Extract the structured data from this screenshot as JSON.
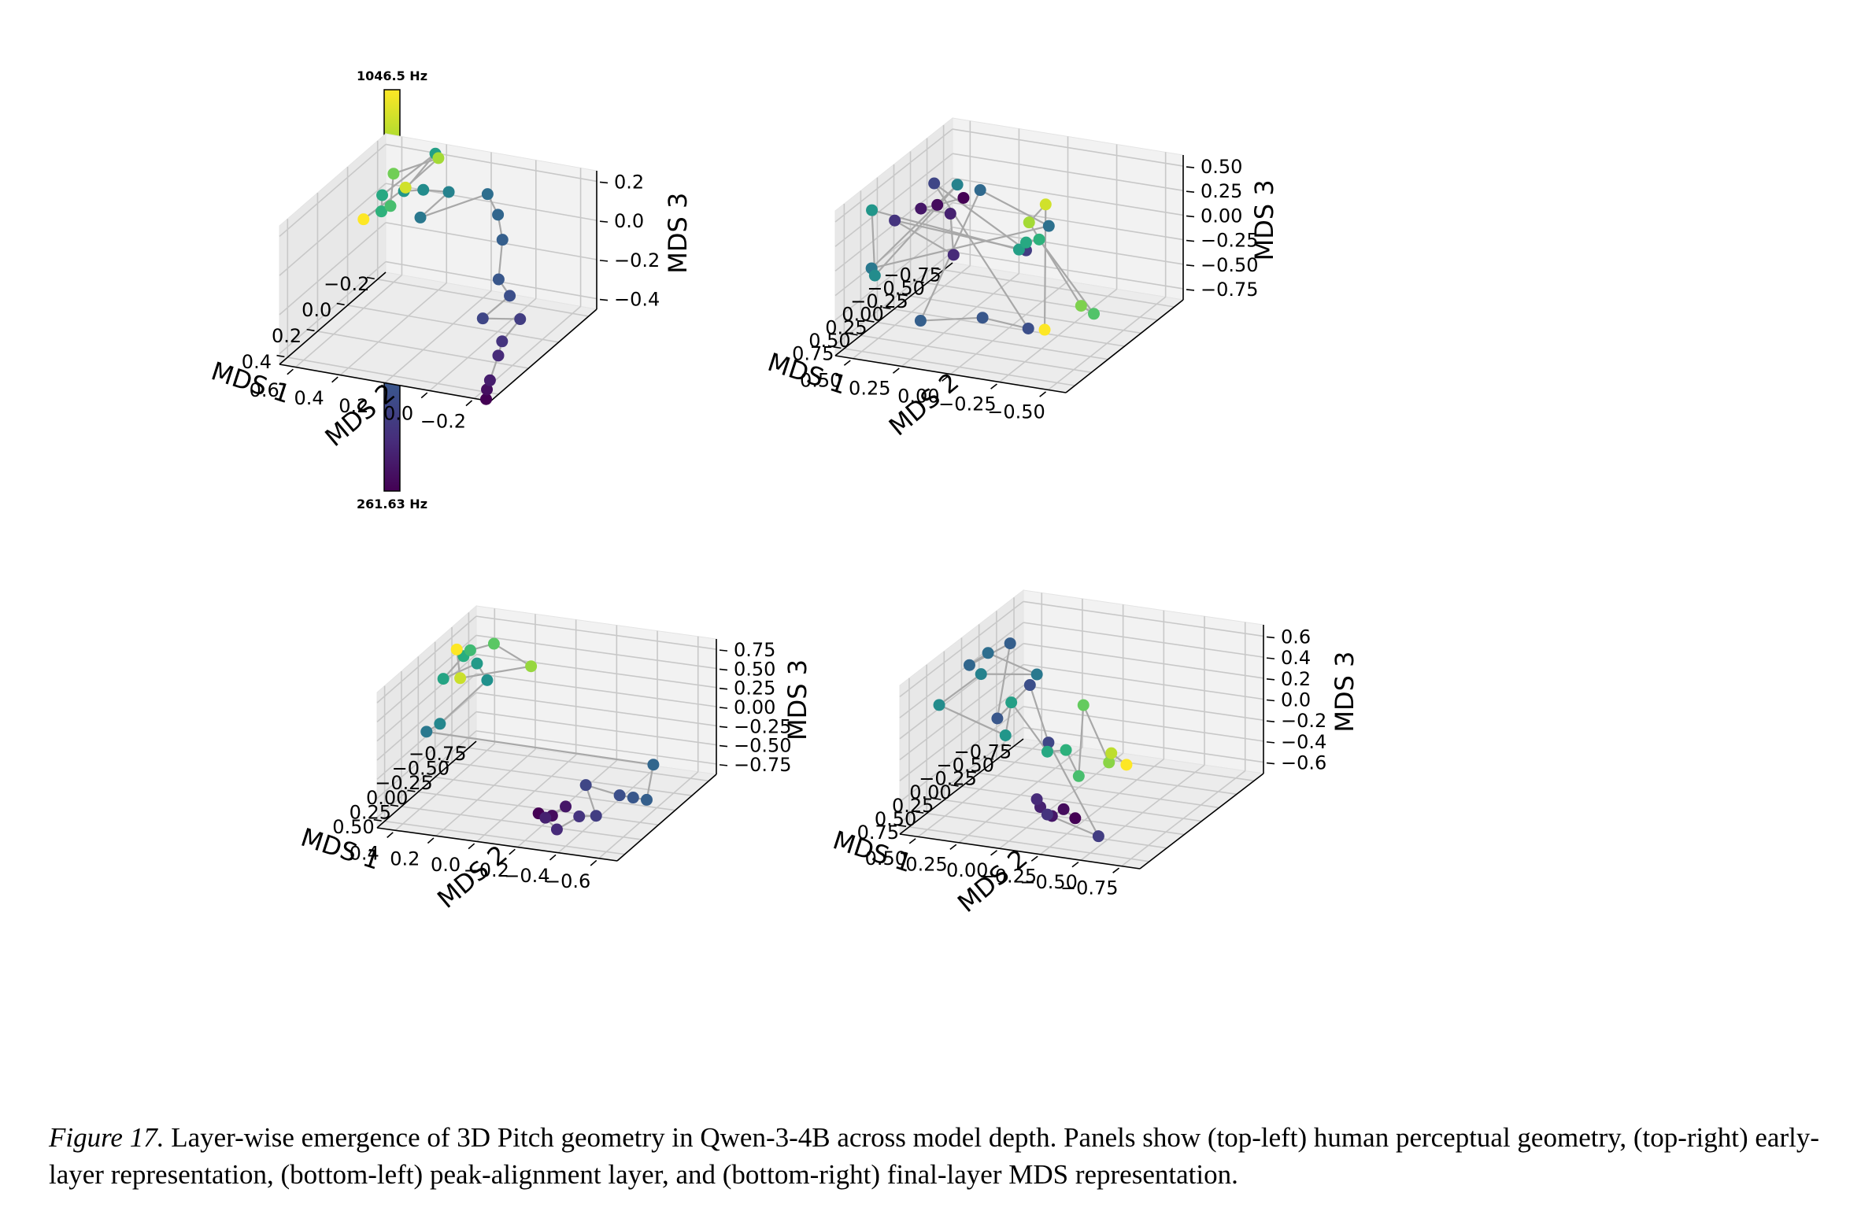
{
  "chart_data": {
    "type": "scatter",
    "colorbar": {
      "max_label": "1046.5 Hz",
      "min_label": "261.63 Hz",
      "colormap": "viridis"
    },
    "panels": [
      {
        "position": "top-left",
        "xlabel": "MDS 1",
        "ylabel": "MDS 2",
        "zlabel": "MDS 3",
        "xticks": [
          "−0.2",
          "0.0",
          "0.2",
          "0.4"
        ],
        "yticks": [
          "−0.2",
          "0.0",
          "0.2",
          "0.4",
          "0.6"
        ],
        "zticks": [
          "0.2",
          "0.0",
          "−0.2",
          "−0.4"
        ],
        "points": [
          {
            "x": 0.45,
            "y": -0.25,
            "z": -0.45,
            "c": 0.0
          },
          {
            "x": 0.4,
            "y": -0.22,
            "z": -0.44,
            "c": 0.04
          },
          {
            "x": 0.35,
            "y": -0.2,
            "z": -0.43,
            "c": 0.08
          },
          {
            "x": 0.22,
            "y": -0.15,
            "z": -0.4,
            "c": 0.12
          },
          {
            "x": 0.15,
            "y": -0.12,
            "z": -0.38,
            "c": 0.15
          },
          {
            "x": 0.0,
            "y": -0.1,
            "z": -0.37,
            "c": 0.18
          },
          {
            "x": 0.1,
            "y": 0.0,
            "z": -0.32,
            "c": 0.21
          },
          {
            "x": -0.05,
            "y": -0.02,
            "z": -0.3,
            "c": 0.24
          },
          {
            "x": -0.08,
            "y": 0.05,
            "z": -0.25,
            "c": 0.27
          },
          {
            "x": -0.15,
            "y": 0.08,
            "z": -0.1,
            "c": 0.3
          },
          {
            "x": -0.18,
            "y": 0.12,
            "z": 0.0,
            "c": 0.33
          },
          {
            "x": -0.2,
            "y": 0.18,
            "z": 0.08,
            "c": 0.36
          },
          {
            "x": -0.05,
            "y": 0.38,
            "z": 0.02,
            "c": 0.4
          },
          {
            "x": -0.12,
            "y": 0.3,
            "z": 0.12,
            "c": 0.44
          },
          {
            "x": 0.02,
            "y": 0.32,
            "z": 0.22,
            "c": 0.48
          },
          {
            "x": 0.0,
            "y": 0.42,
            "z": 0.18,
            "c": 0.52
          },
          {
            "x": -0.15,
            "y": 0.38,
            "z": 0.28,
            "c": 0.56
          },
          {
            "x": 0.1,
            "y": 0.45,
            "z": 0.22,
            "c": 0.6
          },
          {
            "x": 0.18,
            "y": 0.4,
            "z": 0.2,
            "c": 0.64
          },
          {
            "x": 0.06,
            "y": 0.44,
            "z": 0.14,
            "c": 0.7
          },
          {
            "x": -0.05,
            "y": 0.5,
            "z": 0.22,
            "c": 0.78
          },
          {
            "x": -0.2,
            "y": 0.4,
            "z": 0.22,
            "c": 0.86
          },
          {
            "x": -0.1,
            "y": 0.48,
            "z": 0.12,
            "c": 0.93
          },
          {
            "x": 0.15,
            "y": 0.5,
            "z": 0.12,
            "c": 1.0
          }
        ]
      },
      {
        "position": "top-right",
        "xlabel": "MDS 1",
        "ylabel": "MDS 2",
        "zlabel": "MDS 3",
        "xticks": [
          "−0.75",
          "−0.50",
          "−0.25",
          "0.00",
          "0.25",
          "0.50",
          "0.75"
        ],
        "yticks": [
          "−0.50",
          "−0.25",
          "0.00",
          "0.25",
          "0.50"
        ],
        "zticks": [
          "0.50",
          "0.25",
          "0.00",
          "−0.25",
          "−0.50",
          "−0.75"
        ],
        "points": [
          {
            "x": 0.1,
            "y": 0.2,
            "z": 0.45,
            "c": 0.0
          },
          {
            "x": 0.2,
            "y": 0.3,
            "z": 0.4,
            "c": 0.03
          },
          {
            "x": 0.3,
            "y": 0.35,
            "z": 0.4,
            "c": 0.06
          },
          {
            "x": 0.15,
            "y": 0.25,
            "z": 0.3,
            "c": 0.09
          },
          {
            "x": 0.25,
            "y": 0.2,
            "z": -0.05,
            "c": 0.12
          },
          {
            "x": 0.4,
            "y": 0.45,
            "z": 0.3,
            "c": 0.15
          },
          {
            "x": -0.55,
            "y": 0.1,
            "z": -0.4,
            "c": 0.18
          },
          {
            "x": 0.1,
            "y": 0.35,
            "z": 0.55,
            "c": 0.21
          },
          {
            "x": 0.45,
            "y": -0.25,
            "z": -0.55,
            "c": 0.24
          },
          {
            "x": 0.55,
            "y": -0.05,
            "z": -0.45,
            "c": 0.27
          },
          {
            "x": 0.6,
            "y": 0.25,
            "z": -0.55,
            "c": 0.3
          },
          {
            "x": -0.3,
            "y": 0.25,
            "z": 0.3,
            "c": 0.34
          },
          {
            "x": -0.45,
            "y": -0.05,
            "z": -0.05,
            "c": 0.37
          },
          {
            "x": 0.75,
            "y": 0.45,
            "z": 0.0,
            "c": 0.4
          },
          {
            "x": -0.25,
            "y": 0.35,
            "z": 0.35,
            "c": 0.44
          },
          {
            "x": 0.7,
            "y": 0.45,
            "z": -0.1,
            "c": 0.48
          },
          {
            "x": 0.45,
            "y": 0.55,
            "z": 0.4,
            "c": 0.52
          },
          {
            "x": 0.0,
            "y": -0.05,
            "z": -0.05,
            "c": 0.56
          },
          {
            "x": -0.55,
            "y": 0.1,
            "z": -0.32,
            "c": 0.6
          },
          {
            "x": -0.6,
            "y": 0.05,
            "z": -0.3,
            "c": 0.64
          },
          {
            "x": 0.05,
            "y": -0.45,
            "z": -0.55,
            "c": 0.72
          },
          {
            "x": -0.2,
            "y": -0.3,
            "z": -0.65,
            "c": 0.8
          },
          {
            "x": -0.3,
            "y": 0.0,
            "z": 0.05,
            "c": 0.86
          },
          {
            "x": -0.55,
            "y": 0.0,
            "z": 0.1,
            "c": 0.93
          },
          {
            "x": 0.35,
            "y": -0.3,
            "z": -0.6,
            "c": 1.0
          }
        ]
      },
      {
        "position": "bottom-left",
        "xlabel": "MDS 1",
        "ylabel": "MDS 2",
        "zlabel": "MDS 3",
        "xticks": [
          "−0.75",
          "−0.50",
          "−0.25",
          "0.00",
          "0.25",
          "0.50"
        ],
        "yticks": [
          "−0.6",
          "−0.4",
          "−0.2",
          "0.0",
          "0.2",
          "0.4"
        ],
        "zticks": [
          "0.75",
          "0.50",
          "0.25",
          "0.00",
          "−0.25",
          "−0.50",
          "−0.75"
        ],
        "points": [
          {
            "x": 0.45,
            "y": -0.25,
            "z": -0.55,
            "c": 0.0
          },
          {
            "x": 0.4,
            "y": -0.3,
            "z": -0.6,
            "c": 0.03
          },
          {
            "x": 0.35,
            "y": -0.35,
            "z": -0.5,
            "c": 0.06
          },
          {
            "x": 0.5,
            "y": -0.3,
            "z": -0.55,
            "c": 0.09
          },
          {
            "x": 0.48,
            "y": -0.35,
            "z": -0.7,
            "c": 0.12
          },
          {
            "x": 0.3,
            "y": -0.4,
            "z": -0.65,
            "c": 0.15
          },
          {
            "x": 0.2,
            "y": -0.45,
            "z": -0.7,
            "c": 0.18
          },
          {
            "x": 0.05,
            "y": -0.35,
            "z": -0.45,
            "c": 0.21
          },
          {
            "x": -0.15,
            "y": -0.45,
            "z": -0.7,
            "c": 0.24
          },
          {
            "x": -0.2,
            "y": -0.5,
            "z": -0.75,
            "c": 0.27
          },
          {
            "x": -0.25,
            "y": -0.55,
            "z": -0.8,
            "c": 0.3
          },
          {
            "x": -0.5,
            "y": -0.5,
            "z": -0.55,
            "c": 0.33
          },
          {
            "x": 0.15,
            "y": 0.4,
            "z": 0.05,
            "c": 0.4
          },
          {
            "x": -0.05,
            "y": 0.4,
            "z": 0.0,
            "c": 0.46
          },
          {
            "x": -0.45,
            "y": 0.3,
            "z": 0.3,
            "c": 0.5
          },
          {
            "x": -0.45,
            "y": 0.35,
            "z": 0.5,
            "c": 0.54
          },
          {
            "x": -0.1,
            "y": 0.4,
            "z": 0.55,
            "c": 0.58
          },
          {
            "x": -0.25,
            "y": 0.35,
            "z": 0.75,
            "c": 0.62
          },
          {
            "x": -0.35,
            "y": 0.35,
            "z": 0.75,
            "c": 0.68
          },
          {
            "x": -0.55,
            "y": 0.3,
            "z": 0.7,
            "c": 0.74
          },
          {
            "x": -0.8,
            "y": 0.2,
            "z": 0.25,
            "c": 0.84
          },
          {
            "x": -0.2,
            "y": 0.35,
            "z": 0.5,
            "c": 0.92
          },
          {
            "x": -0.3,
            "y": 0.4,
            "z": 0.78,
            "c": 1.0
          }
        ]
      },
      {
        "position": "bottom-right",
        "xlabel": "MDS 1",
        "ylabel": "MDS 2",
        "zlabel": "MDS 3",
        "xticks": [
          "−0.75",
          "−0.50",
          "−0.25",
          "0.00",
          "0.25",
          "0.50",
          "0.75"
        ],
        "yticks": [
          "−0.75",
          "−0.50",
          "−0.25",
          "0.00",
          "0.25",
          "0.50"
        ],
        "zticks": [
          "0.6",
          "0.4",
          "0.2",
          "0.0",
          "−0.2",
          "−0.4",
          "−0.6"
        ],
        "points": [
          {
            "x": 0.5,
            "y": -0.3,
            "z": -0.55,
            "c": 0.0
          },
          {
            "x": 0.55,
            "y": -0.25,
            "z": -0.45,
            "c": 0.03
          },
          {
            "x": 0.6,
            "y": -0.2,
            "z": -0.5,
            "c": 0.06
          },
          {
            "x": 0.65,
            "y": -0.15,
            "z": -0.4,
            "c": 0.09
          },
          {
            "x": 0.7,
            "y": -0.15,
            "z": -0.3,
            "c": 0.12
          },
          {
            "x": 0.62,
            "y": -0.18,
            "z": -0.48,
            "c": 0.15
          },
          {
            "x": 0.4,
            "y": -0.4,
            "z": -0.75,
            "c": 0.18
          },
          {
            "x": -0.05,
            "y": 0.1,
            "z": -0.2,
            "c": 0.21
          },
          {
            "x": -0.25,
            "y": 0.3,
            "z": 0.2,
            "c": 0.24
          },
          {
            "x": 0.1,
            "y": 0.35,
            "z": 0.05,
            "c": 0.27
          },
          {
            "x": -0.2,
            "y": 0.4,
            "z": 0.6,
            "c": 0.3
          },
          {
            "x": 0.15,
            "y": 0.5,
            "z": 0.55,
            "c": 0.33
          },
          {
            "x": 0.0,
            "y": 0.45,
            "z": 0.6,
            "c": 0.36
          },
          {
            "x": -0.35,
            "y": 0.3,
            "z": 0.25,
            "c": 0.4
          },
          {
            "x": 0.1,
            "y": 0.45,
            "z": 0.45,
            "c": 0.44
          },
          {
            "x": 0.35,
            "y": 0.6,
            "z": 0.25,
            "c": 0.48
          },
          {
            "x": 0.1,
            "y": 0.3,
            "z": -0.1,
            "c": 0.52
          },
          {
            "x": -0.1,
            "y": 0.35,
            "z": 0.1,
            "c": 0.56
          },
          {
            "x": -0.15,
            "y": 0.15,
            "z": -0.35,
            "c": 0.6
          },
          {
            "x": -0.3,
            "y": 0.1,
            "z": -0.4,
            "c": 0.64
          },
          {
            "x": -0.25,
            "y": 0.0,
            "z": -0.6,
            "c": 0.7
          },
          {
            "x": -0.55,
            "y": 0.1,
            "z": -0.1,
            "c": 0.76
          },
          {
            "x": -0.45,
            "y": -0.1,
            "z": -0.55,
            "c": 0.82
          },
          {
            "x": -0.6,
            "y": -0.05,
            "z": -0.55,
            "c": 0.9
          },
          {
            "x": -0.7,
            "y": -0.1,
            "z": -0.7,
            "c": 1.0
          }
        ]
      }
    ]
  },
  "caption": {
    "label": "Figure 17.",
    "text": " Layer-wise emergence of 3D Pitch geometry in Qwen-3-4B across model depth. Panels show (top-left) human perceptual geometry, (top-right) early-layer representation, (bottom-left) peak-alignment layer, and (bottom-right) final-layer MDS representation."
  }
}
